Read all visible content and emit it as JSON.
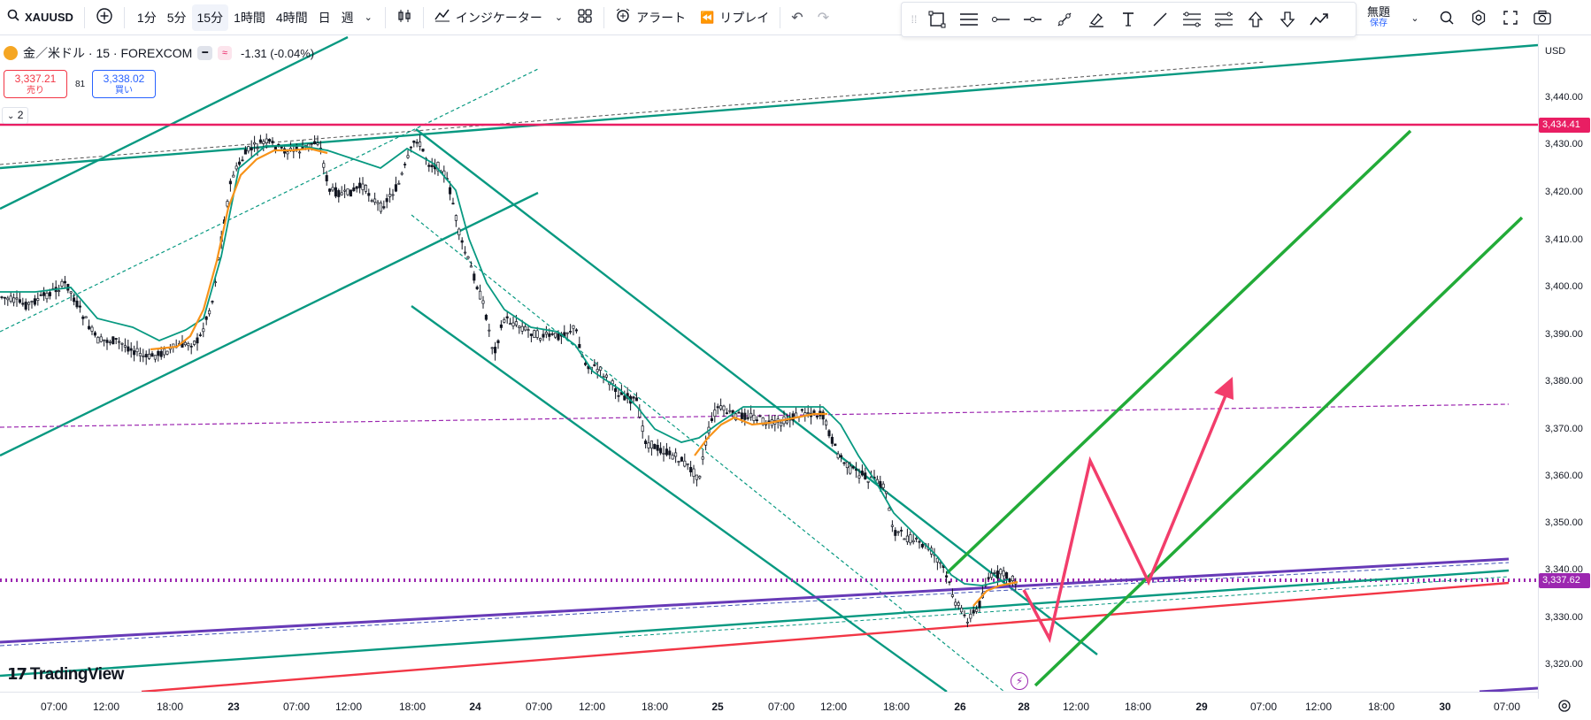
{
  "topbar": {
    "symbol": "XAUUSD",
    "intervals": [
      "1分",
      "5分",
      "15分",
      "1時間",
      "4時間",
      "日",
      "週"
    ],
    "active_interval": "15分",
    "indicators_label": "インジケーター",
    "alert_label": "アラート",
    "replay_label": "リプレイ",
    "layout_title": "無題",
    "layout_subtitle": "保存"
  },
  "legend": {
    "name": "金／米ドル · 15 · FOREXCOM",
    "change": "-1.31 (-0.04%)",
    "sell_price": "3,337.21",
    "sell_label": "売り",
    "spread": "81",
    "buy_price": "3,338.02",
    "buy_label": "買い",
    "collapse_count": "2"
  },
  "price_axis": {
    "currency": "USD",
    "labels": [
      "3,440.00",
      "3,430.00",
      "3,420.00",
      "3,410.00",
      "3,400.00",
      "3,390.00",
      "3,380.00",
      "3,370.00",
      "3,360.00",
      "3,350.00",
      "3,340.00",
      "3,330.00",
      "3,320.00"
    ],
    "tag_resistance": "3,434.41",
    "tag_current": "3,337.62",
    "colors": {
      "resistance": "#e91e63",
      "current": "#9c27b0"
    }
  },
  "time_axis": {
    "labels": [
      "07:00",
      "12:00",
      "18:00",
      "23",
      "07:00",
      "12:00",
      "18:00",
      "24",
      "07:00",
      "12:00",
      "18:00",
      "25",
      "07:00",
      "12:00",
      "18:00",
      "26",
      "28",
      "12:00",
      "18:00",
      "29",
      "07:00",
      "12:00",
      "18:00",
      "30",
      "07:00"
    ]
  },
  "watermark": "TradingView",
  "icons": {
    "search": "search-icon",
    "add": "plus-circle-icon",
    "chart_type": "candles-icon",
    "indicators": "indicator-icon",
    "templates": "grid-icon",
    "alert": "alarm-icon",
    "replay": "replay-icon",
    "undo": "undo-icon",
    "redo": "redo-icon",
    "settings": "gear-icon",
    "screenshot": "camera-icon",
    "fullscreen": "fullscreen-icon"
  }
}
